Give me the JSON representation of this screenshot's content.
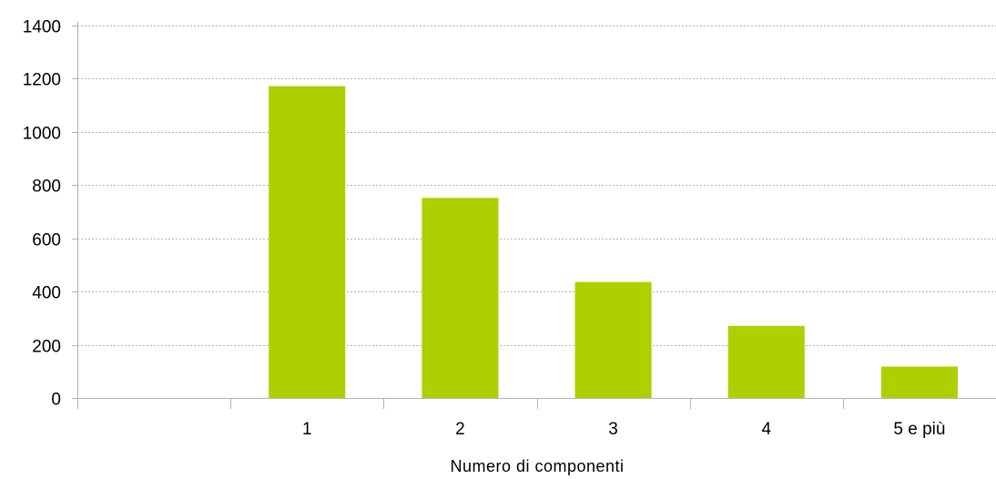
{
  "chart_data": {
    "type": "bar",
    "categories": [
      "",
      "1",
      "2",
      "3",
      "4",
      "5 e più"
    ],
    "values": [
      0,
      1172,
      752,
      436,
      271,
      118
    ],
    "title": "",
    "xlabel": "Numero di componenti",
    "ylabel": "",
    "ylim": [
      0,
      1400
    ],
    "yticks": [
      0,
      200,
      400,
      600,
      800,
      1000,
      1200,
      1400
    ],
    "grid": true,
    "legend": "none",
    "bar_color": "#afd000",
    "grid_color": "#b3b3b3"
  }
}
